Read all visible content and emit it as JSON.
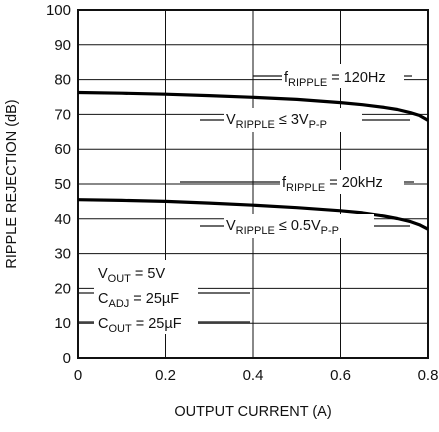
{
  "chart_data": {
    "type": "line",
    "title": "",
    "xlabel": "OUTPUT CURRENT (A)",
    "ylabel": "RIPPLE REJECTION (dB)",
    "xlim": [
      0,
      0.8
    ],
    "ylim": [
      0,
      100
    ],
    "x_ticks": [
      "0",
      "0.2",
      "0.4",
      "0.6",
      "0.8"
    ],
    "y_ticks": [
      "0",
      "10",
      "20",
      "30",
      "40",
      "50",
      "60",
      "70",
      "80",
      "90",
      "100"
    ],
    "grid": true,
    "series": [
      {
        "name": "fRIPPLE = 120Hz",
        "x": [
          0,
          0.1,
          0.2,
          0.3,
          0.4,
          0.5,
          0.6,
          0.65,
          0.7,
          0.73,
          0.76,
          0.78,
          0.8
        ],
        "y": [
          76.3,
          76.1,
          75.8,
          75.4,
          74.9,
          74.3,
          73.4,
          72.8,
          72.0,
          71.4,
          70.5,
          69.7,
          68.3
        ]
      },
      {
        "name": "fRIPPLE = 20kHz",
        "x": [
          0,
          0.1,
          0.2,
          0.3,
          0.4,
          0.5,
          0.6,
          0.65,
          0.7,
          0.73,
          0.76,
          0.78,
          0.8
        ],
        "y": [
          45.5,
          45.3,
          45.0,
          44.5,
          43.9,
          43.2,
          42.3,
          41.7,
          40.8,
          40.1,
          39.2,
          38.3,
          37.0
        ]
      }
    ],
    "annotations": {
      "f120": {
        "main": "f",
        "sub": "RIPPLE",
        "rest": " = 120Hz"
      },
      "v3": {
        "main": "V",
        "sub": "RIPPLE",
        "rest": " ≤ 3V",
        "sub2": "P-P"
      },
      "f20k": {
        "main": "f",
        "sub": "RIPPLE",
        "rest": " = 20kHz"
      },
      "v05": {
        "main": "V",
        "sub": "RIPPLE",
        "rest": " ≤ 0.5V",
        "sub2": "P-P"
      },
      "vout": {
        "main": "V",
        "sub": "OUT",
        "rest": " = 5V"
      },
      "cadj": {
        "main": "C",
        "sub": "ADJ",
        "rest": " = 25µF"
      },
      "cout": {
        "main": "C",
        "sub": "OUT",
        "rest": " = 25µF"
      }
    }
  }
}
